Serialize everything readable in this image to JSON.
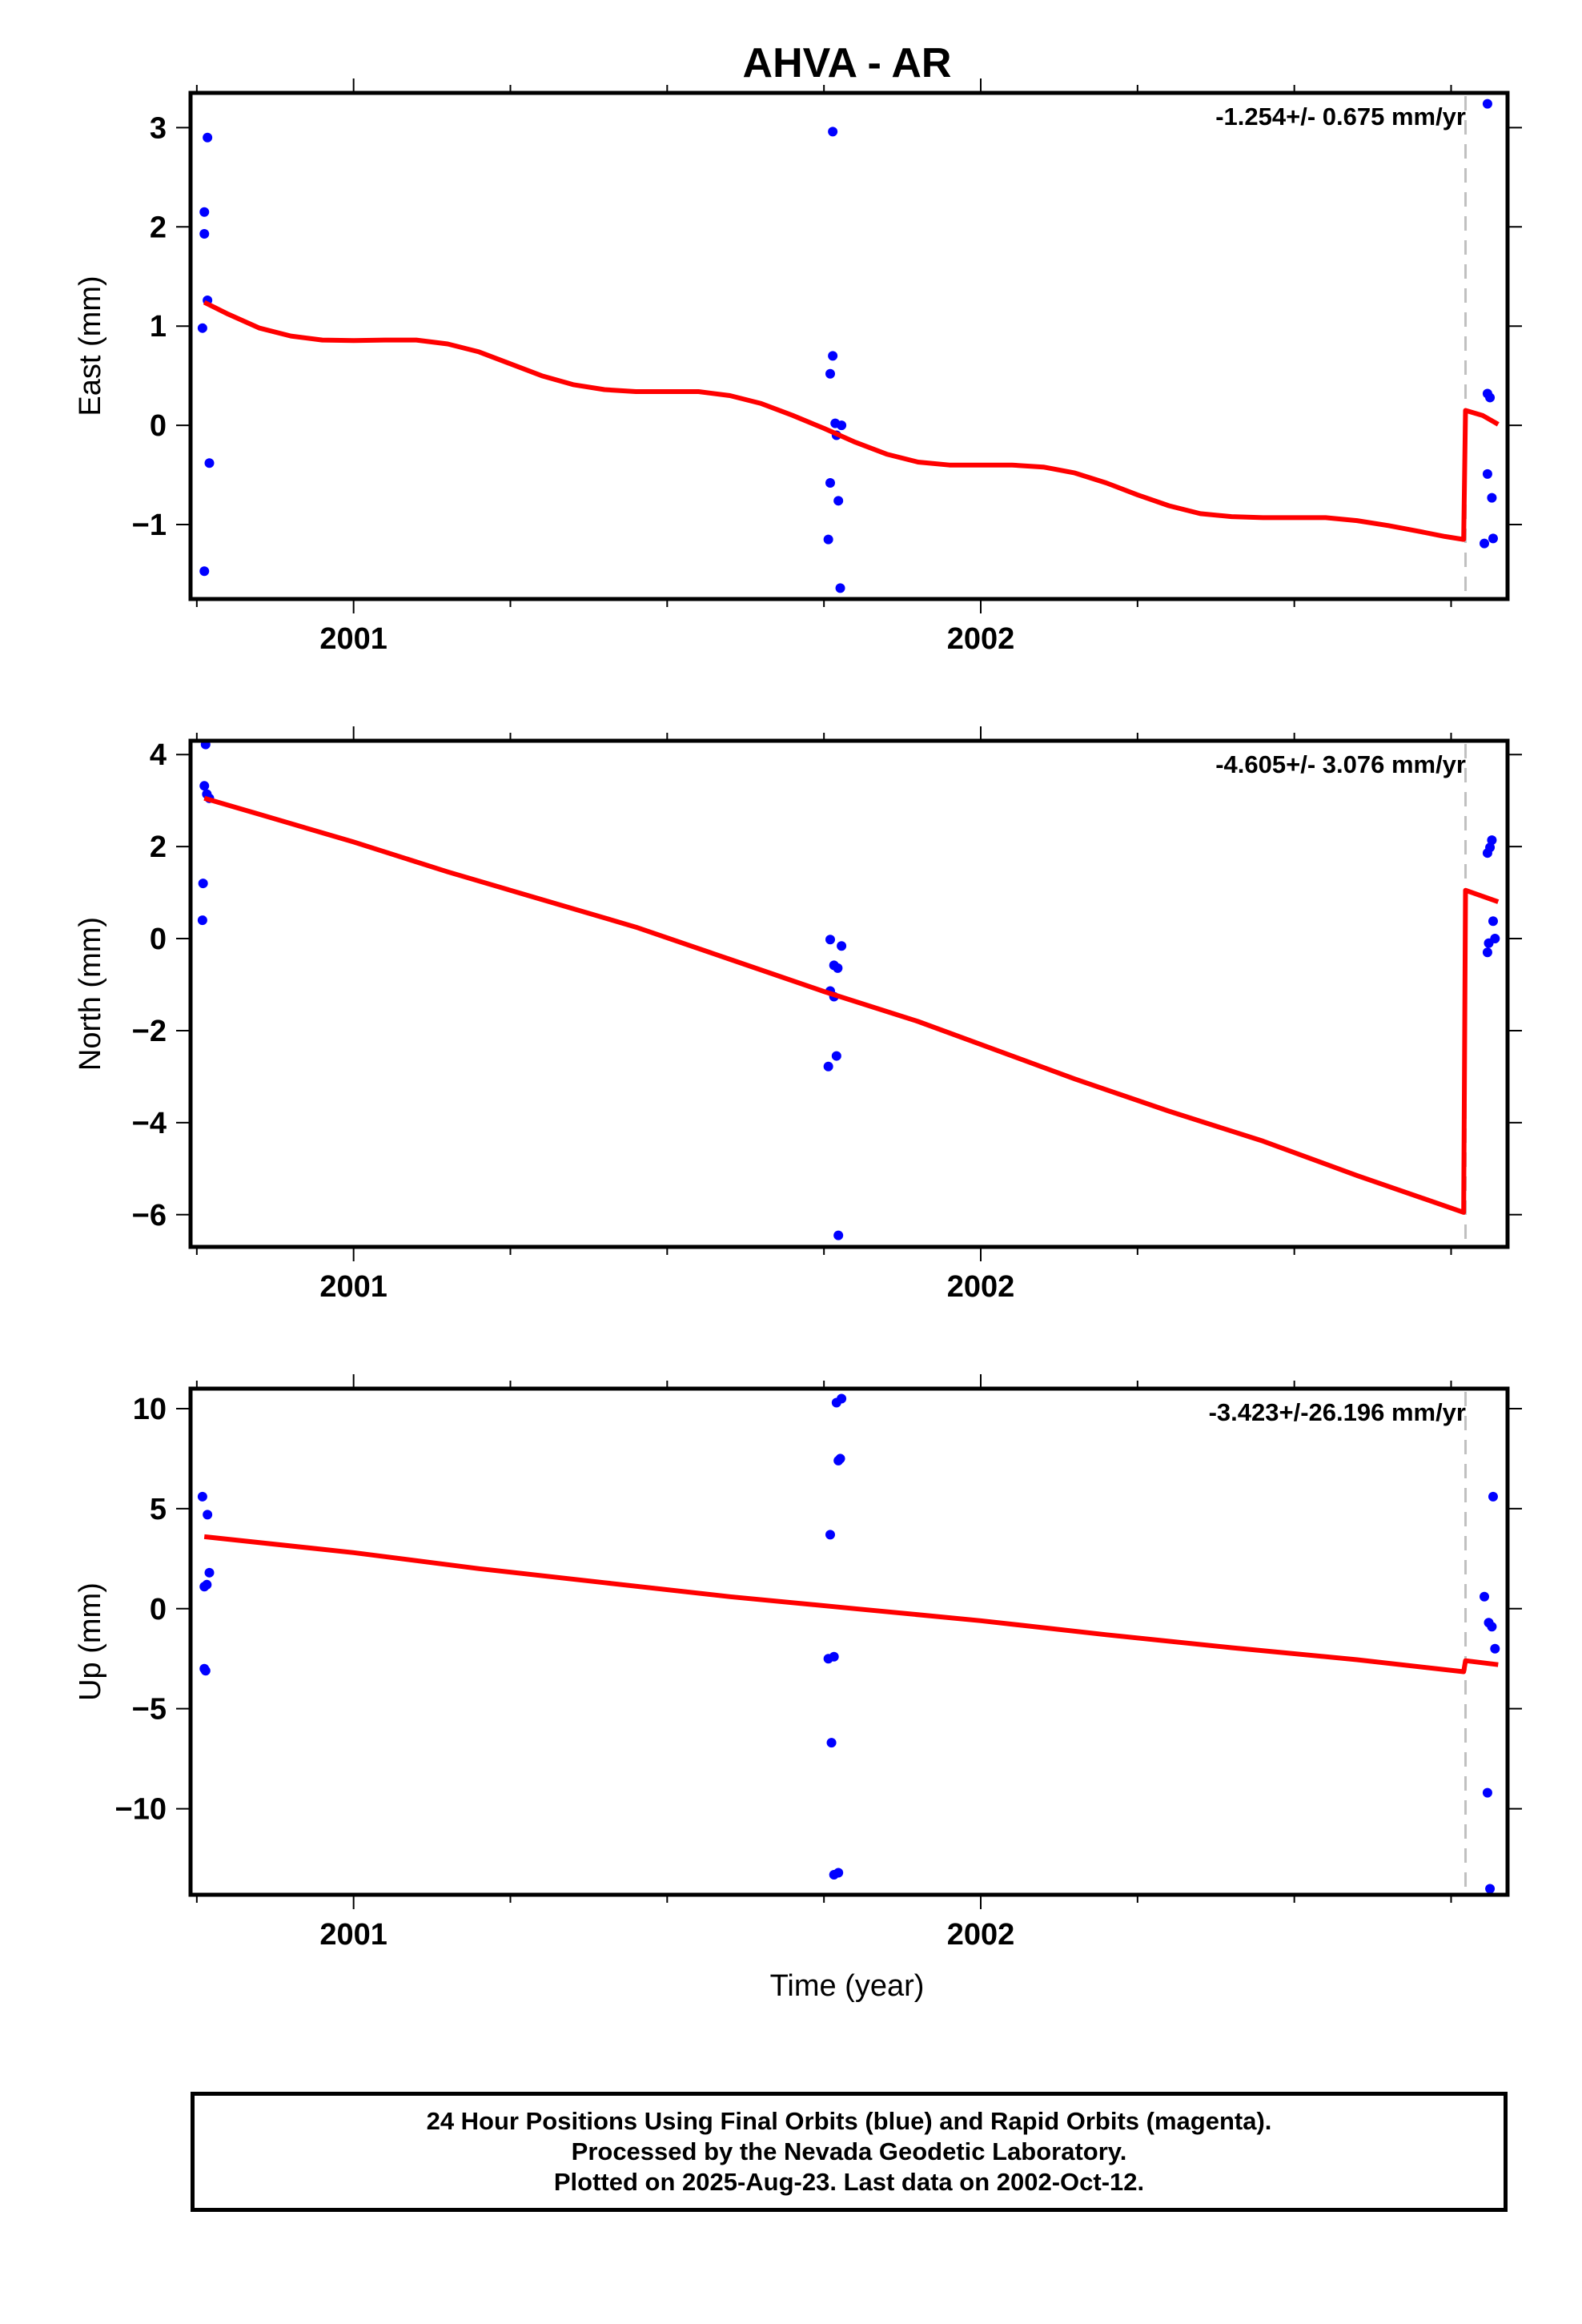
{
  "title": "AHVA - AR",
  "xlabel": "Time (year)",
  "colors": {
    "final_orbits": "#0000ff",
    "model_fit": "#ff0000",
    "break_line": "#c0c0c0",
    "axes": "#000000"
  },
  "footer": {
    "line1": "24 Hour Positions Using Final Orbits (blue) and Rapid Orbits (magenta).",
    "line2": "Processed by the Nevada Geodetic Laboratory.",
    "line3": "Plotted on 2025-Aug-23. Last data on 2002-Oct-12."
  },
  "chart_data": [
    {
      "type": "scatter",
      "ylabel": "East (mm)",
      "rate_label": "-1.254+/- 0.675 mm/yr",
      "xlim": [
        2000.74,
        2002.84
      ],
      "ylim": [
        -1.75,
        3.35
      ],
      "yticks": [
        -1,
        0,
        1,
        2,
        3
      ],
      "xticks": [
        2001,
        2002
      ],
      "equipment_break": 2002.773,
      "series": [
        {
          "points": [
            [
              2000.762,
              2.15
            ],
            [
              2000.762,
              1.93
            ],
            [
              2000.762,
              -1.47
            ],
            [
              2000.767,
              2.9
            ],
            [
              2000.767,
              1.26
            ],
            [
              2000.77,
              -0.38
            ],
            [
              2000.759,
              0.98
            ],
            [
              2001.764,
              2.96
            ],
            [
              2001.76,
              0.52
            ],
            [
              2001.764,
              0.7
            ],
            [
              2001.76,
              -0.58
            ],
            [
              2001.757,
              -1.15
            ],
            [
              2001.768,
              0.02
            ],
            [
              2001.77,
              -0.1
            ],
            [
              2001.773,
              -0.76
            ],
            [
              2001.776,
              -1.64
            ],
            [
              2001.778,
              0.0
            ],
            [
              2002.808,
              3.24
            ],
            [
              2002.808,
              0.32
            ],
            [
              2002.812,
              0.28
            ],
            [
              2002.808,
              -0.49
            ],
            [
              2002.815,
              -0.73
            ],
            [
              2002.803,
              -1.19
            ],
            [
              2002.817,
              -1.14
            ]
          ]
        }
      ],
      "model": [
        [
          2000.762,
          1.24
        ],
        [
          2000.8,
          1.12
        ],
        [
          2000.85,
          0.98
        ],
        [
          2000.9,
          0.9
        ],
        [
          2000.95,
          0.86
        ],
        [
          2001.0,
          0.855
        ],
        [
          2001.05,
          0.86
        ],
        [
          2001.1,
          0.86
        ],
        [
          2001.15,
          0.82
        ],
        [
          2001.2,
          0.74
        ],
        [
          2001.25,
          0.62
        ],
        [
          2001.3,
          0.5
        ],
        [
          2001.35,
          0.41
        ],
        [
          2001.4,
          0.36
        ],
        [
          2001.45,
          0.34
        ],
        [
          2001.5,
          0.34
        ],
        [
          2001.55,
          0.34
        ],
        [
          2001.6,
          0.3
        ],
        [
          2001.65,
          0.22
        ],
        [
          2001.7,
          0.1
        ],
        [
          2001.75,
          -0.03
        ],
        [
          2001.8,
          -0.17
        ],
        [
          2001.85,
          -0.29
        ],
        [
          2001.9,
          -0.37
        ],
        [
          2001.95,
          -0.4
        ],
        [
          2002.0,
          -0.4
        ],
        [
          2002.05,
          -0.4
        ],
        [
          2002.1,
          -0.42
        ],
        [
          2002.15,
          -0.48
        ],
        [
          2002.2,
          -0.58
        ],
        [
          2002.25,
          -0.7
        ],
        [
          2002.3,
          -0.81
        ],
        [
          2002.35,
          -0.89
        ],
        [
          2002.4,
          -0.92
        ],
        [
          2002.45,
          -0.93
        ],
        [
          2002.5,
          -0.93
        ],
        [
          2002.55,
          -0.93
        ],
        [
          2002.6,
          -0.96
        ],
        [
          2002.65,
          -1.01
        ],
        [
          2002.7,
          -1.07
        ],
        [
          2002.74,
          -1.12
        ],
        [
          2002.77,
          -1.15
        ],
        [
          2002.773,
          0.15
        ],
        [
          2002.8,
          0.1
        ],
        [
          2002.825,
          0.01
        ]
      ]
    },
    {
      "type": "scatter",
      "ylabel": "North (mm)",
      "rate_label": "-4.605+/- 3.076 mm/yr",
      "xlim": [
        2000.74,
        2002.84
      ],
      "ylim": [
        -6.7,
        4.3
      ],
      "yticks": [
        -6,
        -4,
        -2,
        0,
        2,
        4
      ],
      "xticks": [
        2001,
        2002
      ],
      "equipment_break": 2002.773,
      "series": [
        {
          "points": [
            [
              2000.764,
              4.22
            ],
            [
              2000.762,
              3.32
            ],
            [
              2000.766,
              3.14
            ],
            [
              2000.77,
              3.05
            ],
            [
              2000.76,
              1.2
            ],
            [
              2000.759,
              0.4
            ],
            [
              2001.76,
              -0.02
            ],
            [
              2001.766,
              -0.58
            ],
            [
              2001.772,
              -0.64
            ],
            [
              2001.778,
              -0.16
            ],
            [
              2001.76,
              -1.14
            ],
            [
              2001.766,
              -1.26
            ],
            [
              2001.757,
              -2.78
            ],
            [
              2001.77,
              -2.55
            ],
            [
              2001.773,
              -6.45
            ],
            [
              2002.808,
              1.86
            ],
            [
              2002.812,
              1.98
            ],
            [
              2002.815,
              2.14
            ],
            [
              2002.81,
              -0.1
            ],
            [
              2002.808,
              -0.3
            ],
            [
              2002.817,
              0.38
            ],
            [
              2002.82,
              0.0
            ]
          ]
        }
      ],
      "model": [
        [
          2000.762,
          3.05
        ],
        [
          2000.85,
          2.7
        ],
        [
          2001.0,
          2.1
        ],
        [
          2001.15,
          1.45
        ],
        [
          2001.3,
          0.85
        ],
        [
          2001.45,
          0.25
        ],
        [
          2001.6,
          -0.45
        ],
        [
          2001.75,
          -1.15
        ],
        [
          2001.9,
          -1.8
        ],
        [
          2002.0,
          -2.3
        ],
        [
          2002.15,
          -3.05
        ],
        [
          2002.3,
          -3.75
        ],
        [
          2002.45,
          -4.4
        ],
        [
          2002.6,
          -5.15
        ],
        [
          2002.77,
          -5.95
        ],
        [
          2002.773,
          1.05
        ],
        [
          2002.825,
          0.8
        ]
      ]
    },
    {
      "type": "scatter",
      "ylabel": "Up (mm)",
      "rate_label": "-3.423+/-26.196 mm/yr",
      "xlim": [
        2000.74,
        2002.84
      ],
      "ylim": [
        -14.3,
        11.0
      ],
      "yticks": [
        -10,
        -5,
        0,
        5,
        10
      ],
      "xticks": [
        2001,
        2002
      ],
      "equipment_break": 2002.773,
      "series": [
        {
          "points": [
            [
              2000.759,
              5.6
            ],
            [
              2000.767,
              4.7
            ],
            [
              2000.77,
              1.8
            ],
            [
              2000.766,
              1.2
            ],
            [
              2000.762,
              1.1
            ],
            [
              2000.762,
              -3.0
            ],
            [
              2000.764,
              -3.1
            ],
            [
              2001.77,
              10.3
            ],
            [
              2001.778,
              10.5
            ],
            [
              2001.773,
              7.4
            ],
            [
              2001.776,
              7.5
            ],
            [
              2001.76,
              3.7
            ],
            [
              2001.757,
              -2.5
            ],
            [
              2001.766,
              -2.4
            ],
            [
              2001.762,
              -6.7
            ],
            [
              2001.766,
              -13.3
            ],
            [
              2001.773,
              -13.2
            ],
            [
              2002.817,
              5.6
            ],
            [
              2002.803,
              0.6
            ],
            [
              2002.81,
              -0.7
            ],
            [
              2002.815,
              -0.9
            ],
            [
              2002.82,
              -2.0
            ],
            [
              2002.808,
              -9.2
            ],
            [
              2002.812,
              -14.0
            ]
          ]
        }
      ],
      "model": [
        [
          2000.762,
          3.6
        ],
        [
          2001.0,
          2.8
        ],
        [
          2001.2,
          2.0
        ],
        [
          2001.4,
          1.3
        ],
        [
          2001.6,
          0.6
        ],
        [
          2001.8,
          0.0
        ],
        [
          2002.0,
          -0.6
        ],
        [
          2002.2,
          -1.3
        ],
        [
          2002.4,
          -1.95
        ],
        [
          2002.6,
          -2.55
        ],
        [
          2002.77,
          -3.15
        ],
        [
          2002.773,
          -2.6
        ],
        [
          2002.825,
          -2.8
        ]
      ]
    }
  ]
}
